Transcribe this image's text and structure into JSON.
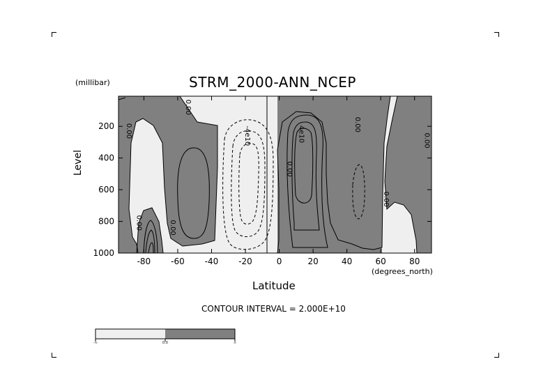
{
  "chart_data": {
    "type": "contour",
    "title": "STRM_2000-ANN_NCEP",
    "xlabel": "Latitude",
    "ylabel": "Level",
    "x_units": "(degrees_north)",
    "y_units": "(millibar)",
    "xlim": [
      -95,
      90
    ],
    "ylim": [
      1000,
      10
    ],
    "y_inverted": true,
    "x_ticks": [
      -80,
      -60,
      -40,
      -20,
      0,
      20,
      40,
      60,
      80
    ],
    "x_tick_labels": [
      "-80",
      "-60",
      "-40",
      "-20",
      "0",
      "20",
      "40",
      "60",
      "80"
    ],
    "y_ticks": [
      200,
      400,
      600,
      800,
      1000
    ],
    "y_tick_labels": [
      "200",
      "400",
      "600",
      "800",
      "1000"
    ],
    "contour_interval_text": "CONTOUR INTERVAL = 2.000E+10",
    "contour_interval": 20000000000.0,
    "contour_labels": [
      {
        "text": "0.00",
        "lat": -90,
        "lev": 230
      },
      {
        "text": "0.00",
        "lat": -55,
        "lev": 80
      },
      {
        "text": "0.00",
        "lat": -84,
        "lev": 810
      },
      {
        "text": "0.00",
        "lat": -64,
        "lev": 840
      },
      {
        "text": "-4e10",
        "lat": -20,
        "lev": 260
      },
      {
        "text": "4e10",
        "lat": 12,
        "lev": 250
      },
      {
        "text": "0.00",
        "lat": 5,
        "lev": 470
      },
      {
        "text": "0.00",
        "lat": 45,
        "lev": 190
      },
      {
        "text": "0.00",
        "lat": 62,
        "lev": 660
      },
      {
        "text": "0.00",
        "lat": 86,
        "lev": 290
      }
    ],
    "fill_colors": {
      "negative": "#efefef",
      "positive": "#808080"
    },
    "colorbar": {
      "labels": [
        "-∞",
        "0.0",
        "∞"
      ]
    }
  }
}
